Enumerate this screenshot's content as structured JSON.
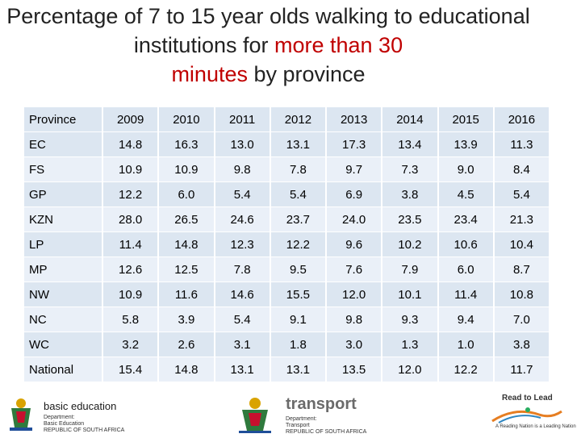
{
  "title": {
    "part1": "Percentage of 7 to 15 year olds walking to educational institutions for ",
    "highlight1": "more than 30",
    "highlight2": "minutes",
    "part2": " by province"
  },
  "table": {
    "header": [
      "Province",
      "2009",
      "2010",
      "2011",
      "2012",
      "2013",
      "2014",
      "2015",
      "2016"
    ],
    "rows": [
      [
        "EC",
        "14.8",
        "16.3",
        "13.0",
        "13.1",
        "17.3",
        "13.4",
        "13.9",
        "11.3"
      ],
      [
        "FS",
        "10.9",
        "10.9",
        "9.8",
        "7.8",
        "9.7",
        "7.3",
        "9.0",
        "8.4"
      ],
      [
        "GP",
        "12.2",
        "6.0",
        "5.4",
        "5.4",
        "6.9",
        "3.8",
        "4.5",
        "5.4"
      ],
      [
        "KZN",
        "28.0",
        "26.5",
        "24.6",
        "23.7",
        "24.0",
        "23.5",
        "23.4",
        "21.3"
      ],
      [
        "LP",
        "11.4",
        "14.8",
        "12.3",
        "12.2",
        "9.6",
        "10.2",
        "10.6",
        "10.4"
      ],
      [
        "MP",
        "12.6",
        "12.5",
        "7.8",
        "9.5",
        "7.6",
        "7.9",
        "6.0",
        "8.7"
      ],
      [
        "NW",
        "10.9",
        "11.6",
        "14.6",
        "15.5",
        "12.0",
        "10.1",
        "11.4",
        "10.8"
      ],
      [
        "NC",
        "5.8",
        "3.9",
        "5.4",
        "9.1",
        "9.8",
        "9.3",
        "9.4",
        "7.0"
      ],
      [
        "WC",
        "3.2",
        "2.6",
        "3.1",
        "1.8",
        "3.0",
        "1.3",
        "1.0",
        "3.8"
      ],
      [
        "National",
        "15.4",
        "14.8",
        "13.1",
        "13.1",
        "13.5",
        "12.0",
        "12.2",
        "11.7"
      ]
    ]
  },
  "logos": {
    "basic_education": {
      "name": "basic education",
      "line1": "Department:",
      "line2": "Basic Education",
      "line3": "REPUBLIC OF SOUTH AFRICA"
    },
    "transport": {
      "name": "transport",
      "line1": "Department:",
      "line2": "Transport",
      "line3": "REPUBLIC OF SOUTH AFRICA"
    },
    "read_to_lead": {
      "name": "Read to Lead",
      "tagline": "A Reading Nation is a Leading Nation"
    }
  }
}
